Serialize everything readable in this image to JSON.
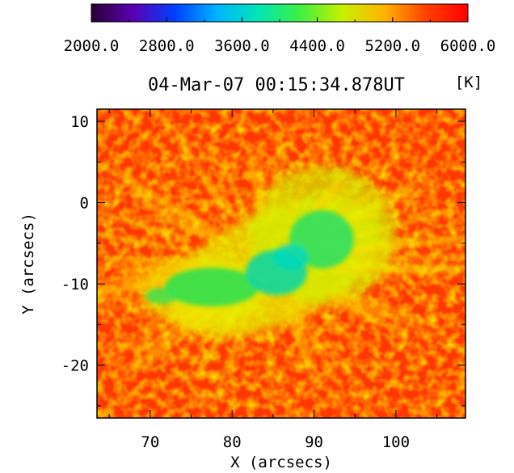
{
  "chart_data": {
    "type": "heatmap",
    "title": "04-Mar-07 00:15:34.878UT",
    "colorbar": {
      "unit_label": "[K]",
      "range": [
        2000.0,
        6000.0
      ],
      "ticks": [
        "2000.0",
        "2800.0",
        "3600.0",
        "4400.0",
        "5200.0",
        "6000.0"
      ],
      "colormap": [
        "#2a0033",
        "#5a00b4",
        "#0040ff",
        "#00b4ff",
        "#00e6b4",
        "#40f040",
        "#c8f000",
        "#ffb400",
        "#ff4000",
        "#ff0000"
      ]
    },
    "xlabel": "X (arcsecs)",
    "ylabel": "Y (arcsecs)",
    "xlim": [
      63.5,
      108.5
    ],
    "ylim": [
      -26.5,
      11.5
    ],
    "xticks": [
      70,
      80,
      90,
      100
    ],
    "yticks": [
      10,
      0,
      -10,
      -20
    ],
    "features": {
      "background": "granulation",
      "background_temperature_K": 5400,
      "sunspot_core_temperature_K": 4500,
      "penumbra_temperature_K": 5000
    }
  }
}
